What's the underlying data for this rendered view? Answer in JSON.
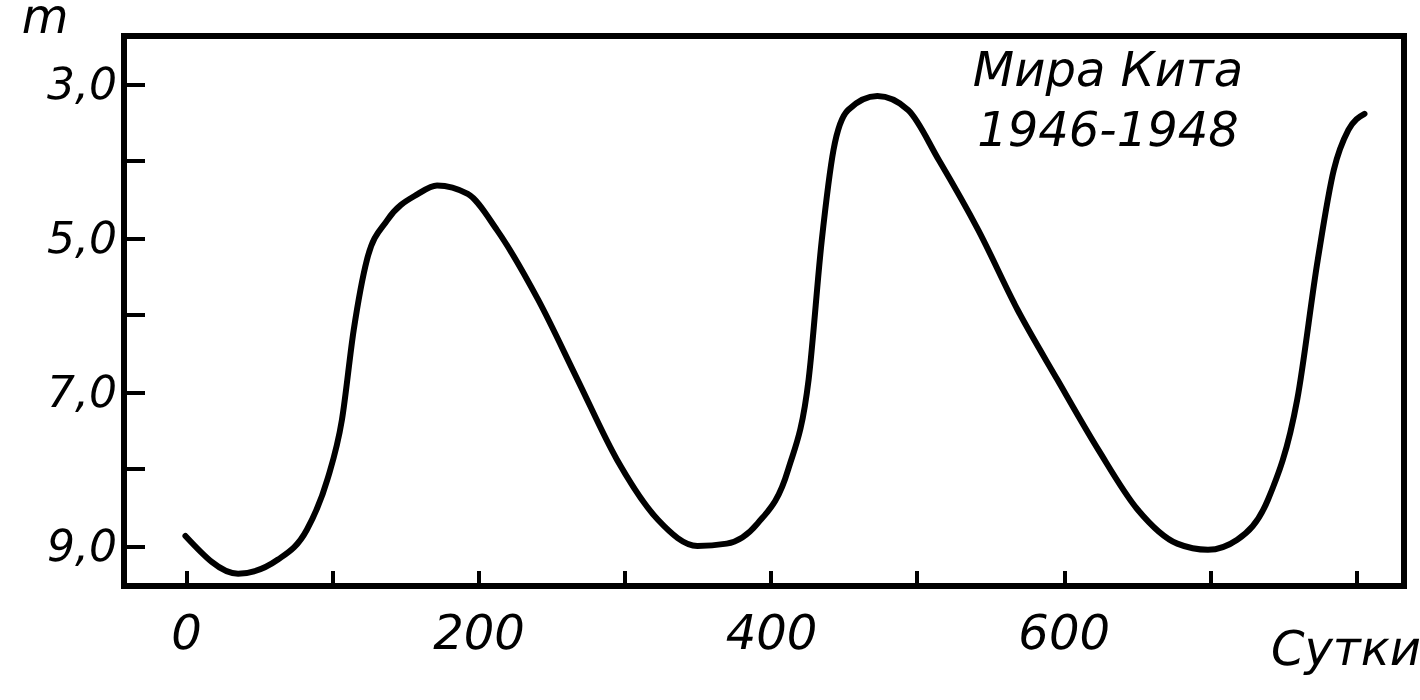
{
  "chart_data": {
    "type": "line",
    "ylabel": "m",
    "xlabel": "Сутки",
    "annotations": [
      "Мира Кита",
      "1946-1948"
    ],
    "x": [
      0,
      36,
      63,
      83,
      97,
      107,
      115,
      124,
      138,
      159,
      172,
      193,
      213,
      241,
      268,
      295,
      323,
      350,
      370,
      391,
      412,
      426,
      435,
      443,
      453,
      473,
      494,
      515,
      542,
      569,
      596,
      624,
      651,
      678,
      699,
      719,
      740,
      760,
      774,
      785,
      795,
      806
    ],
    "series": [
      {
        "color": "#000000",
        "values": [
          8.87,
          9.36,
          9.18,
          8.79,
          8.14,
          7.36,
          6.2,
          5.29,
          4.77,
          4.43,
          4.32,
          4.43,
          4.9,
          5.8,
          6.84,
          7.88,
          8.66,
          9.0,
          8.97,
          8.71,
          8.01,
          6.84,
          5.03,
          3.86,
          3.34,
          3.16,
          3.34,
          3.99,
          4.9,
          5.94,
          6.84,
          7.75,
          8.53,
          8.97,
          9.05,
          8.92,
          8.4,
          7.1,
          5.29,
          4.12,
          3.6,
          3.39
        ]
      }
    ],
    "xlim": [
      -42,
      833
    ],
    "ylim": [
      9.52,
      2.38
    ],
    "xticks": [
      0,
      {
        "value": 100,
        "label": null
      },
      200,
      {
        "value": 300,
        "label": null
      },
      400,
      {
        "value": 500,
        "label": null
      },
      600,
      {
        "value": 700,
        "label": null
      },
      {
        "value": 800,
        "label": null
      }
    ],
    "yticks": [
      {
        "value": 3,
        "label": "3,0"
      },
      {
        "value": 4,
        "label": null
      },
      {
        "value": 5,
        "label": "5,0"
      },
      {
        "value": 6,
        "label": null
      },
      {
        "value": 7,
        "label": "7,0"
      },
      {
        "value": 8,
        "label": null
      },
      {
        "value": 9,
        "label": "9,0"
      }
    ],
    "grid": false,
    "marker": "none",
    "line_style": "solid"
  }
}
